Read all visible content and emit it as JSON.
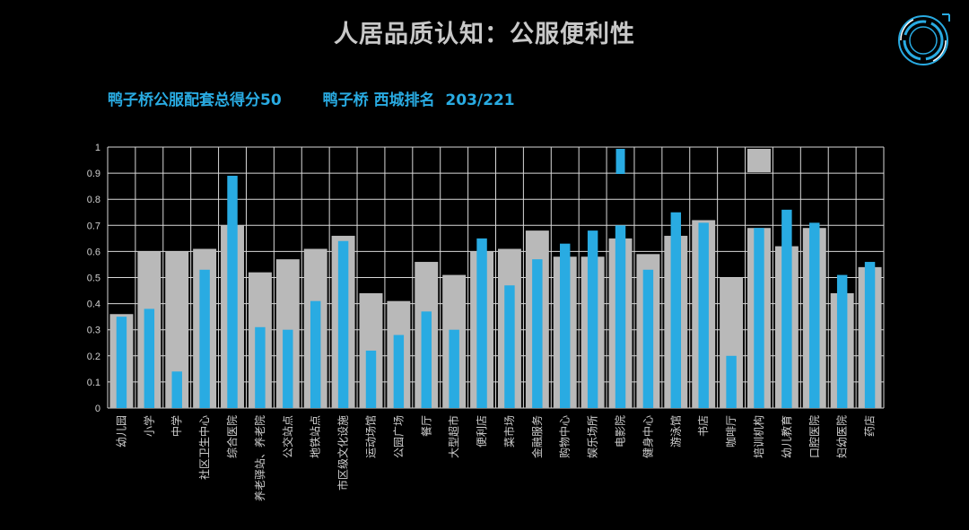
{
  "title": "人居品质认知：公服便利性",
  "subtitle": {
    "score": "鸭子桥公服配套总得分50",
    "rank": "鸭子桥 西城排名  203/221"
  },
  "colors": {
    "background": "#000000",
    "series_blue": "#29abe2",
    "series_grey": "#b9b9b9",
    "title_text": "#c8c8c8",
    "accent": "#29abe2"
  },
  "chart_data": {
    "type": "bar",
    "ylim": [
      0,
      1
    ],
    "yticks": [
      "0",
      "0.1",
      "0.2",
      "0.3",
      "0.4",
      "0.5",
      "0.6",
      "0.7",
      "0.8",
      "0.9",
      "1"
    ],
    "grid": true,
    "categories": [
      "幼儿园",
      "小学",
      "中学",
      "社区卫生中心",
      "综合医院",
      "养老驿站、养老院",
      "公交站点",
      "地铁站点",
      "市区级文化设施",
      "运动场馆",
      "公园广场",
      "餐厅",
      "大型超市",
      "便利店",
      "菜市场",
      "金融服务",
      "购物中心",
      "娱乐场所",
      "电影院",
      "健身中心",
      "游泳馆",
      "书店",
      "咖啡厅",
      "培训机构",
      "幼儿教育",
      "口腔医院",
      "妇幼医院",
      "药店"
    ],
    "series": [
      {
        "values": [
          0.36,
          0.6,
          0.6,
          0.61,
          0.7,
          0.52,
          0.57,
          0.61,
          0.66,
          0.44,
          0.41,
          0.56,
          0.51,
          0.6,
          0.61,
          0.68,
          0.58,
          0.58,
          0.65,
          0.59,
          0.66,
          0.72,
          0.5,
          0.69,
          0.62,
          0.69,
          0.44,
          0.54
        ]
      },
      {
        "values": [
          0.35,
          0.38,
          0.14,
          0.53,
          0.89,
          0.31,
          0.3,
          0.41,
          0.64,
          0.22,
          0.28,
          0.37,
          0.3,
          0.65,
          0.47,
          0.57,
          0.63,
          0.68,
          0.7,
          0.53,
          0.75,
          0.71,
          0.2,
          0.69,
          0.76,
          0.71,
          0.51,
          0.56
        ]
      }
    ]
  },
  "legend_fragments": [
    {
      "color": "#29abe2",
      "after": "电影院"
    },
    {
      "color": "#b9b9b9",
      "after": "培训机构"
    }
  ],
  "logo_icon": "circular-target-icon"
}
